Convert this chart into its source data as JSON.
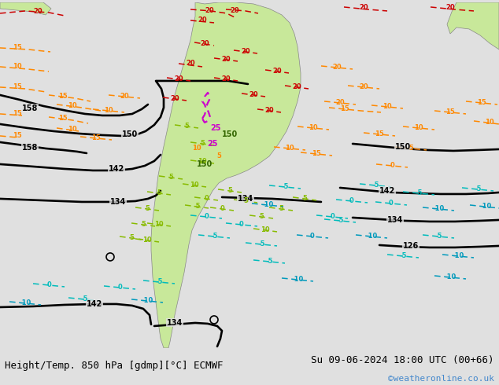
{
  "title_left": "Height/Temp. 850 hPa [gdmp][°C] ECMWF",
  "title_right": "Su 09-06-2024 18:00 UTC (00+66)",
  "watermark": "©weatheronline.co.uk",
  "bg_color": "#e0e0e0",
  "land_color": "#c8e89a",
  "title_font_size": 9,
  "watermark_color": "#4488cc",
  "figsize": [
    6.34,
    4.9
  ],
  "dpi": 100
}
